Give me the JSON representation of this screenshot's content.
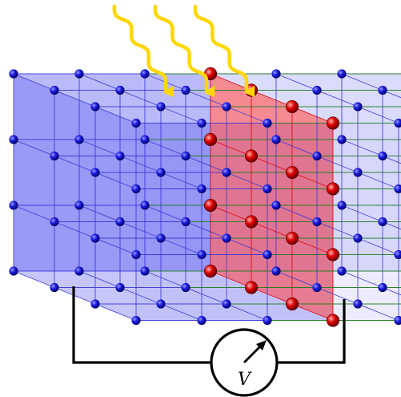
{
  "diagram": {
    "voltmeter": {
      "symbol": "V"
    },
    "lattice": {
      "layers": 7,
      "rows": 4,
      "depth": 4,
      "highlighted_layer": 3
    },
    "light_rays": {
      "count": 3
    },
    "colors": {
      "background": "#ffffff",
      "blue_slab_fill": "#5b5bf0",
      "right_slab_fill": "#8b8bf7",
      "red_plane_fill": "#ff4d4d",
      "blue_lines": "#3535d8",
      "red_lines": "#e00000",
      "green_lines": "#1a7a1a",
      "blue_atom": "#0000cc",
      "red_atom": "#dd0000",
      "ray": "#ffd700",
      "circuit": "#000000"
    }
  }
}
